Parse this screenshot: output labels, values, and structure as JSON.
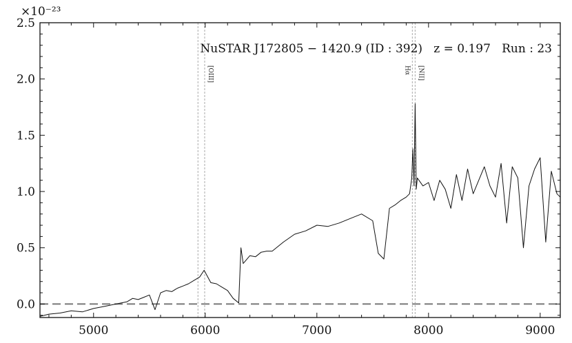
{
  "chart_data": {
    "type": "line",
    "title": "NuSTAR J172805 − 1420.9 (ID : 392)   z = 0.197   Run : 23",
    "xlabel": "",
    "ylabel": "",
    "y_multiplier": "×10⁻²³",
    "xlim": [
      4520,
      9180
    ],
    "ylim": [
      -0.12,
      2.5
    ],
    "x_ticks": [
      5000,
      6000,
      7000,
      8000,
      9000
    ],
    "y_ticks": [
      0.0,
      0.5,
      1.0,
      1.5,
      2.0,
      2.5
    ],
    "x_tick_labels": [
      "5000",
      "6000",
      "7000",
      "8000",
      "9000"
    ],
    "y_tick_labels": [
      "0.0",
      "0.5",
      "1.0",
      "1.5",
      "2.0",
      "2.5"
    ],
    "grid": false,
    "zero_line": {
      "y": 0.0,
      "style": "dashed",
      "color": "#777777"
    },
    "emission_lines": [
      {
        "label": "[OIII]",
        "x": [
          5935,
          5995
        ]
      },
      {
        "label": "Hα",
        "x": [
          7855
        ]
      },
      {
        "label": "[NII]",
        "x": [
          7880
        ]
      }
    ],
    "series": [
      {
        "color": "#111111",
        "x": [
          4520,
          4600,
          4700,
          4800,
          4900,
          5000,
          5100,
          5200,
          5300,
          5350,
          5400,
          5450,
          5500,
          5550,
          5600,
          5650,
          5700,
          5750,
          5800,
          5850,
          5900,
          5950,
          5990,
          6050,
          6100,
          6150,
          6200,
          6250,
          6300,
          6320,
          6340,
          6400,
          6450,
          6500,
          6550,
          6600,
          6700,
          6800,
          6900,
          7000,
          7100,
          7200,
          7300,
          7400,
          7500,
          7550,
          7600,
          7650,
          7700,
          7750,
          7800,
          7830,
          7850,
          7860,
          7870,
          7880,
          7890,
          7900,
          7950,
          8000,
          8050,
          8100,
          8150,
          8200,
          8250,
          8300,
          8350,
          8400,
          8450,
          8500,
          8550,
          8600,
          8650,
          8700,
          8750,
          8800,
          8850,
          8900,
          8950,
          9000,
          9050,
          9100,
          9150,
          9180
        ],
        "y": [
          -0.11,
          -0.09,
          -0.08,
          -0.06,
          -0.07,
          -0.04,
          -0.02,
          0.0,
          0.02,
          0.05,
          0.04,
          0.06,
          0.08,
          -0.05,
          0.1,
          0.12,
          0.11,
          0.14,
          0.16,
          0.18,
          0.21,
          0.24,
          0.3,
          0.19,
          0.18,
          0.15,
          0.12,
          0.05,
          0.01,
          0.5,
          0.36,
          0.43,
          0.42,
          0.46,
          0.47,
          0.47,
          0.55,
          0.62,
          0.65,
          0.7,
          0.69,
          0.72,
          0.76,
          0.8,
          0.74,
          0.45,
          0.4,
          0.85,
          0.88,
          0.92,
          0.95,
          0.98,
          1.12,
          1.38,
          1.05,
          1.78,
          1.02,
          1.12,
          1.05,
          1.08,
          0.92,
          1.1,
          1.02,
          0.85,
          1.15,
          0.92,
          1.2,
          0.98,
          1.1,
          1.22,
          1.05,
          0.95,
          1.25,
          0.72,
          1.22,
          1.12,
          0.5,
          1.05,
          1.2,
          1.3,
          0.55,
          1.18,
          0.98,
          0.95
        ]
      }
    ]
  }
}
